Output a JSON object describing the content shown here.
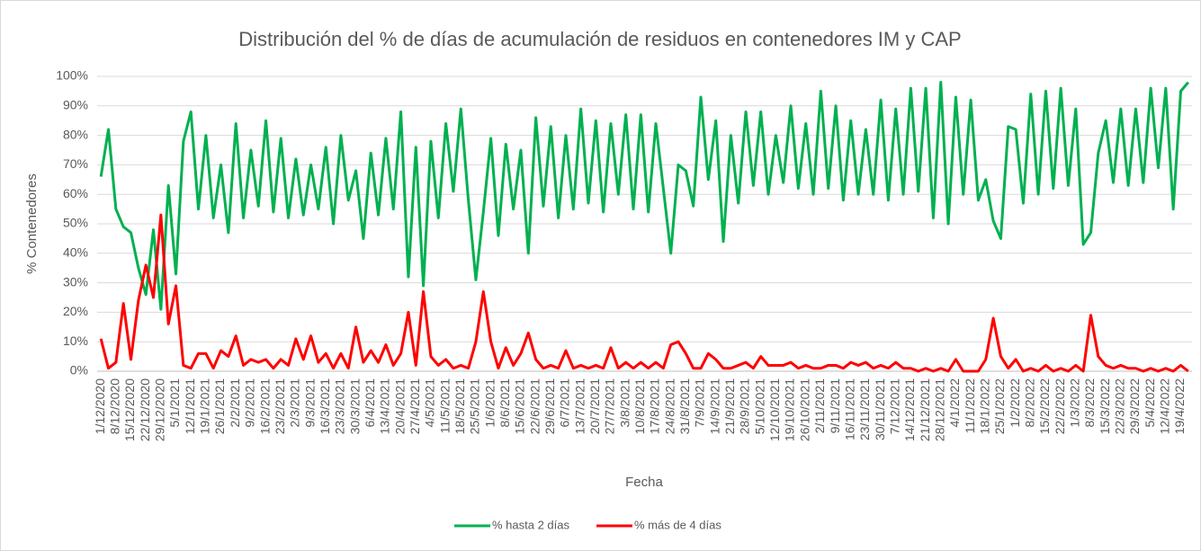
{
  "chart_data": {
    "type": "line",
    "title": "Distribución del % de días de acumulación de residuos en contenedores IM y CAP",
    "x_label": "Fecha",
    "y_label": "% Contenedores",
    "categories": [
      "1/12/2020",
      null,
      "8/12/2020",
      null,
      "15/12/2020",
      null,
      "22/12/2020",
      null,
      "29/12/2020",
      null,
      "5/1/2021",
      null,
      "12/1/2021",
      null,
      "19/1/2021",
      null,
      "26/1/2021",
      null,
      "2/2/2021",
      null,
      "9/2/2021",
      null,
      "16/2/2021",
      null,
      "23/2/2021",
      null,
      "2/3/2021",
      null,
      "9/3/2021",
      null,
      "16/3/2021",
      null,
      "23/3/2021",
      null,
      "30/3/2021",
      null,
      "6/4/2021",
      null,
      "13/4/2021",
      null,
      "20/4/2021",
      null,
      "27/4/2021",
      null,
      "4/5/2021",
      null,
      "11/5/2021",
      null,
      "18/5/2021",
      null,
      "25/5/2021",
      null,
      "1/6/2021",
      null,
      "8/6/2021",
      null,
      "15/6/2021",
      null,
      "22/6/2021",
      null,
      "29/6/2021",
      null,
      "6/7/2021",
      null,
      "13/7/2021",
      null,
      "20/7/2021",
      null,
      "27/7/2021",
      null,
      "3/8/2021",
      null,
      "10/8/2021",
      null,
      "17/8/2021",
      null,
      "24/8/2021",
      null,
      "31/8/2021",
      null,
      "7/9/2021",
      null,
      "14/9/2021",
      null,
      "21/9/2021",
      null,
      "28/9/2021",
      null,
      "5/10/2021",
      null,
      "12/10/2021",
      null,
      "19/10/2021",
      null,
      "26/10/2021",
      null,
      "2/11/2021",
      null,
      "9/11/2021",
      null,
      "16/11/2021",
      null,
      "23/11/2021",
      null,
      "30/11/2021",
      null,
      "7/12/2021",
      null,
      "14/12/2021",
      null,
      "21/12/2021",
      null,
      "28/12/2021",
      null,
      "4/1/2022",
      null,
      "11/1/2022",
      null,
      "18/1/2022",
      null,
      "25/1/2022",
      null,
      "1/2/2022",
      null,
      "8/2/2022",
      null,
      "15/2/2022",
      null,
      "22/2/2022",
      null,
      "1/3/2022",
      null,
      "8/3/2022",
      null,
      "15/3/2022",
      null,
      "22/3/2022",
      null,
      "29/3/2022",
      null,
      "5/4/2022",
      null,
      "12/4/2022",
      null,
      "19/4/2022",
      null
    ],
    "series": [
      {
        "name": "% hasta 2 días",
        "color": "#00b050",
        "values": [
          66,
          82,
          55,
          49,
          47,
          35,
          26,
          48,
          21,
          63,
          33,
          78,
          88,
          55,
          80,
          52,
          70,
          47,
          84,
          52,
          75,
          56,
          85,
          54,
          79,
          52,
          72,
          53,
          70,
          55,
          76,
          50,
          80,
          58,
          68,
          45,
          74,
          53,
          79,
          55,
          88,
          32,
          76,
          29,
          78,
          52,
          84,
          61,
          89,
          58,
          31,
          54,
          79,
          46,
          77,
          55,
          75,
          40,
          86,
          56,
          83,
          52,
          80,
          55,
          89,
          57,
          85,
          54,
          84,
          60,
          87,
          55,
          87,
          54,
          84,
          62,
          40,
          70,
          68,
          56,
          93,
          65,
          85,
          44,
          80,
          57,
          88,
          63,
          88,
          60,
          80,
          64,
          90,
          62,
          84,
          60,
          95,
          62,
          90,
          58,
          85,
          60,
          82,
          60,
          92,
          58,
          89,
          60,
          96,
          61,
          96,
          52,
          98,
          50,
          93,
          60,
          92,
          58,
          65,
          51,
          45,
          83,
          82,
          57,
          94,
          60,
          95,
          62,
          96,
          63,
          89,
          43,
          47,
          74,
          85,
          64,
          89,
          63,
          89,
          64,
          96,
          69,
          96,
          55,
          95,
          98
        ]
      },
      {
        "name": "% más de 4 días",
        "color": "#ff0000",
        "values": [
          11,
          1,
          3,
          23,
          4,
          24,
          36,
          25,
          53,
          16,
          29,
          2,
          1,
          6,
          6,
          1,
          7,
          5,
          12,
          2,
          4,
          3,
          4,
          1,
          4,
          2,
          11,
          4,
          12,
          3,
          6,
          1,
          6,
          1,
          15,
          3,
          7,
          3,
          9,
          2,
          6,
          20,
          2,
          27,
          5,
          2,
          4,
          1,
          2,
          1,
          10,
          27,
          10,
          1,
          8,
          2,
          6,
          13,
          4,
          1,
          2,
          1,
          7,
          1,
          2,
          1,
          2,
          1,
          8,
          1,
          3,
          1,
          3,
          1,
          3,
          1,
          9,
          10,
          6,
          1,
          1,
          6,
          4,
          1,
          1,
          2,
          3,
          1,
          5,
          2,
          2,
          2,
          3,
          1,
          2,
          1,
          1,
          2,
          2,
          1,
          3,
          2,
          3,
          1,
          2,
          1,
          3,
          1,
          1,
          0,
          1,
          0,
          1,
          0,
          4,
          0,
          0,
          0,
          4,
          18,
          5,
          1,
          4,
          0,
          1,
          0,
          2,
          0,
          1,
          0,
          2,
          0,
          19,
          5,
          2,
          1,
          2,
          1,
          1,
          0,
          1,
          0,
          1,
          0,
          2,
          0
        ]
      }
    ],
    "ylim": [
      0,
      100
    ],
    "yticks": [
      {
        "value": 0,
        "label": "0%"
      },
      {
        "value": 10,
        "label": "10%"
      },
      {
        "value": 20,
        "label": "20%"
      },
      {
        "value": 30,
        "label": "30%"
      },
      {
        "value": 40,
        "label": "40%"
      },
      {
        "value": 50,
        "label": "50%"
      },
      {
        "value": 60,
        "label": "60%"
      },
      {
        "value": 70,
        "label": "70%"
      },
      {
        "value": 80,
        "label": "80%"
      },
      {
        "value": 90,
        "label": "90%"
      },
      {
        "value": 100,
        "label": "100%"
      }
    ],
    "grid": true,
    "legend": "bottom"
  }
}
